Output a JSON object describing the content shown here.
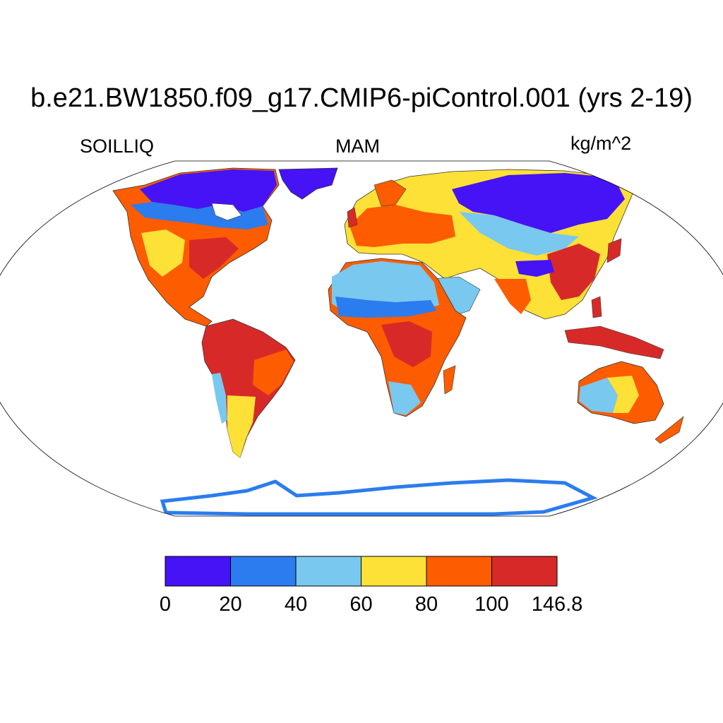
{
  "title": "b.e21.BW1850.f09_g17.CMIP6-piControl.001 (yrs 2-19)",
  "left_label": "SOILLIQ",
  "center_label": "MAM",
  "right_label": "kg/m^2",
  "colorbar": {
    "colors": [
      "#4513f5",
      "#2b7cee",
      "#79c8ef",
      "#fde136",
      "#fd5c00",
      "#d72a28"
    ],
    "labels": [
      "0",
      "20",
      "40",
      "60",
      "80",
      "100",
      "146.8"
    ]
  },
  "colors": {
    "map_background": "#ffffff",
    "coastline": "#333333",
    "map_border": "#000000"
  }
}
